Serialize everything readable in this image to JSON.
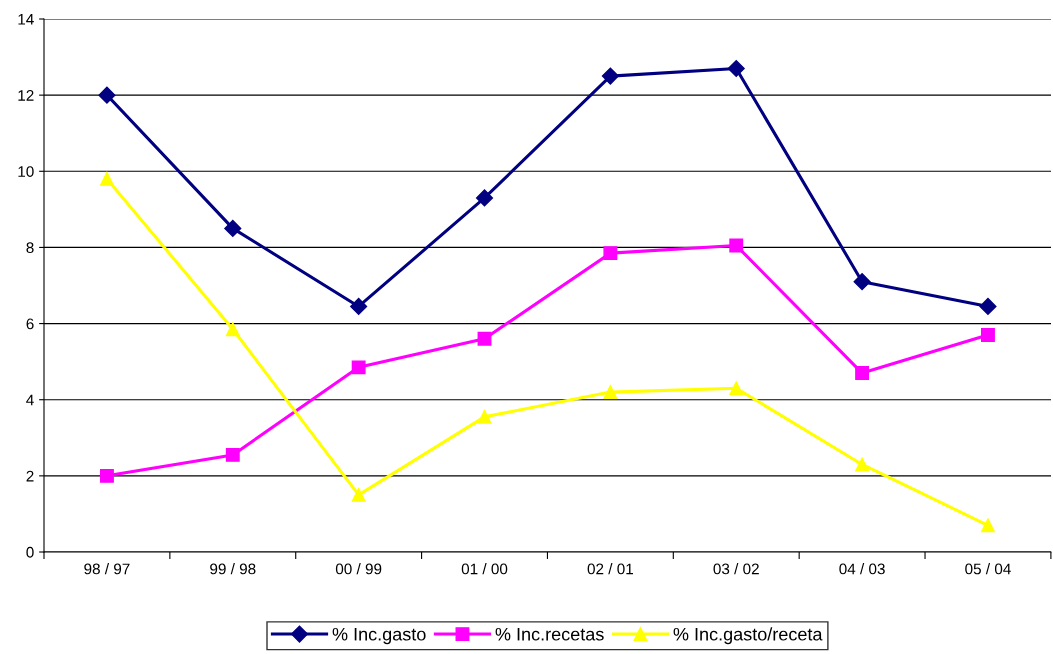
{
  "chart_data": {
    "type": "line",
    "categories": [
      "98 / 97",
      "99 / 98",
      "00 / 99",
      "01 / 00",
      "02 / 01",
      "03 / 02",
      "04 / 03",
      "05 / 04"
    ],
    "series": [
      {
        "name": "% Inc.gasto",
        "color": "#000080",
        "marker": "diamond",
        "values": [
          12.0,
          8.5,
          6.45,
          9.3,
          12.5,
          12.7,
          7.1,
          6.45
        ]
      },
      {
        "name": "% Inc.recetas",
        "color": "#ff00ff",
        "marker": "square",
        "values": [
          2.0,
          2.55,
          4.85,
          5.6,
          7.85,
          8.05,
          4.7,
          5.7
        ]
      },
      {
        "name": "% Inc.gasto/receta",
        "color": "#ffff00",
        "marker": "triangle",
        "values": [
          9.8,
          5.85,
          1.5,
          3.55,
          4.2,
          4.3,
          2.3,
          0.7
        ]
      }
    ],
    "ylim": [
      0,
      14
    ],
    "yticks": [
      0,
      2,
      4,
      6,
      8,
      10,
      12,
      14
    ],
    "grid": "y",
    "legend": "bottom",
    "line_style": "solid"
  }
}
